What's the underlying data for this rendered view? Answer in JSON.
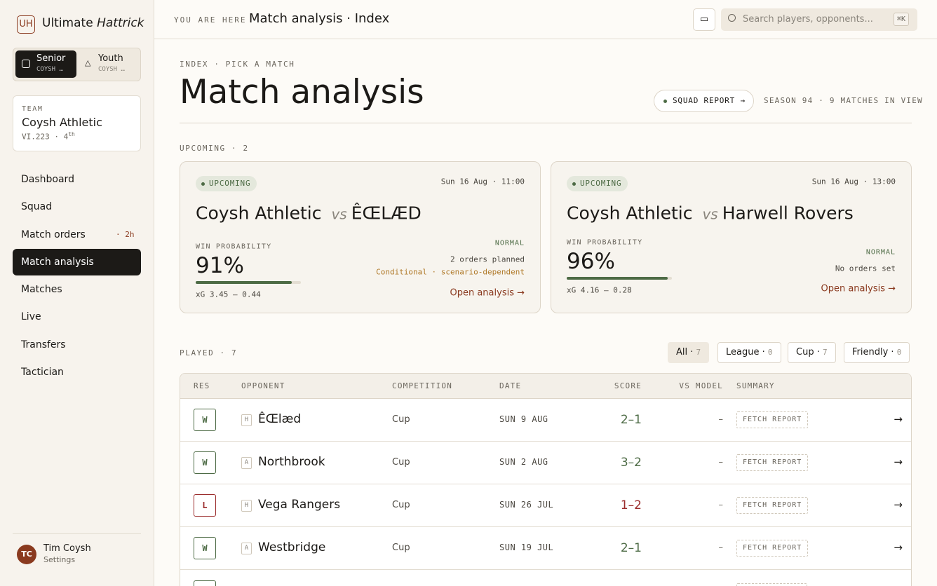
{
  "sidebar": {
    "logo_mark": "UH",
    "brand": "Ultimate",
    "brand_italic": "Hattrick",
    "tabs": [
      {
        "label": "Senior",
        "sub": "COYSH …"
      },
      {
        "label": "Youth",
        "sub": "COYSH …"
      }
    ],
    "team": {
      "caption": "TEAM",
      "name": "Coysh Athletic",
      "meta": "VI.223 · 4",
      "meta_sup": "th"
    },
    "nav": [
      "Dashboard",
      "Squad",
      "Match orders",
      "Match analysis",
      "Matches",
      "Live",
      "Transfers",
      "Tactician"
    ],
    "nav_badge": "· 2h",
    "user": {
      "initials": "TC",
      "name": "Tim Coysh",
      "link": "Settings"
    }
  },
  "topbar": {
    "crumb_label": "YOU ARE HERE",
    "crumb": "Match analysis · Index",
    "search_placeholder": "Search players, opponents...",
    "shortcut": "⌘K"
  },
  "header": {
    "eyebrow": "INDEX · PICK A MATCH",
    "title": "Match analysis",
    "squad_report": "SQUAD REPORT →",
    "season": "SEASON 94 · 9 MATCHES IN VIEW"
  },
  "upcoming": {
    "heading": "UPCOMING · 2",
    "cards": [
      {
        "badge": "UPCOMING",
        "date": "Sun 16 Aug · 11:00",
        "home": "Coysh Athletic",
        "vs": "vs",
        "away": "ÊŒLÆD",
        "win_label": "WIN PROBABILITY",
        "win_probability": 91,
        "win_probability_label": "91%",
        "xg": "xG 3.45 – 0.44",
        "mode": "NORMAL",
        "orders": "2 orders planned",
        "note": "Conditional · scenario-dependent",
        "link": "Open analysis →"
      },
      {
        "badge": "UPCOMING",
        "date": "Sun 16 Aug · 13:00",
        "home": "Coysh Athletic",
        "vs": "vs",
        "away": "Harwell Rovers",
        "win_label": "WIN PROBABILITY",
        "win_probability": 96,
        "win_probability_label": "96%",
        "xg": "xG 4.16 – 0.28",
        "mode": "NORMAL",
        "orders": "No orders set",
        "link": "Open analysis →"
      }
    ]
  },
  "played": {
    "heading": "PLAYED · 7",
    "filters": [
      {
        "label": "All",
        "count": "7"
      },
      {
        "label": "League",
        "count": "0"
      },
      {
        "label": "Cup",
        "count": "7"
      },
      {
        "label": "Friendly",
        "count": "0"
      }
    ],
    "columns": [
      "RES",
      "OPPONENT",
      "COMPETITION",
      "DATE",
      "SCORE",
      "VS MODEL",
      "SUMMARY"
    ],
    "rows": [
      {
        "result": "W",
        "venue": "H",
        "opponent": "ÊŒlæd",
        "competition": "Cup",
        "date": "SUN 9 AUG",
        "score": "2–1",
        "vs_model": "–",
        "summary": "FETCH REPORT",
        "action": "→"
      },
      {
        "result": "W",
        "venue": "A",
        "opponent": "Northbrook",
        "competition": "Cup",
        "date": "SUN 2 AUG",
        "score": "3–2",
        "vs_model": "–",
        "summary": "FETCH REPORT",
        "action": "→"
      },
      {
        "result": "L",
        "venue": "H",
        "opponent": "Vega Rangers",
        "competition": "Cup",
        "date": "SUN 26 JUL",
        "score": "1–2",
        "vs_model": "–",
        "summary": "FETCH REPORT",
        "action": "→"
      },
      {
        "result": "W",
        "venue": "A",
        "opponent": "Westbridge",
        "competition": "Cup",
        "date": "SUN 19 JUL",
        "score": "2–1",
        "vs_model": "–",
        "summary": "FETCH REPORT",
        "action": "→"
      }
    ]
  }
}
